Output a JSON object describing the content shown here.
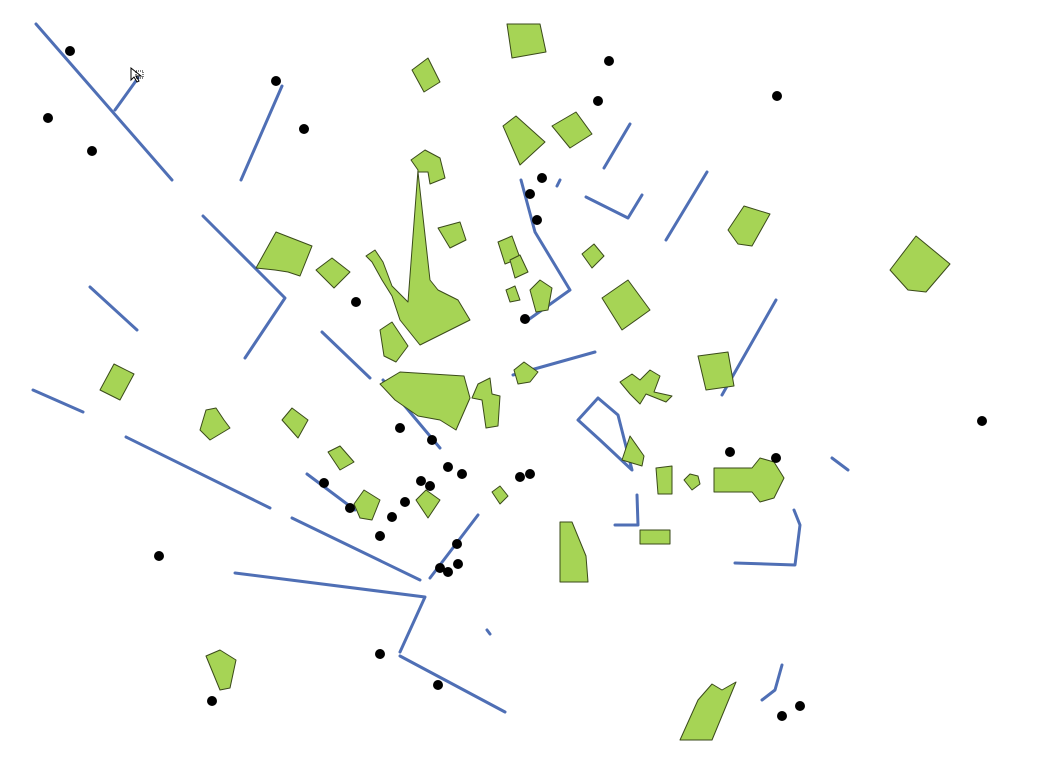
{
  "map": {
    "background": "#ffffff",
    "line_color": "#4f6fb5",
    "building_fill": "#a6d455",
    "building_stroke": "#3a4a1a",
    "point_color": "#000000",
    "layers": [
      "street-lines",
      "building-polygons",
      "point-markers"
    ],
    "cursor_icon": "mouse-pointer-icon"
  }
}
